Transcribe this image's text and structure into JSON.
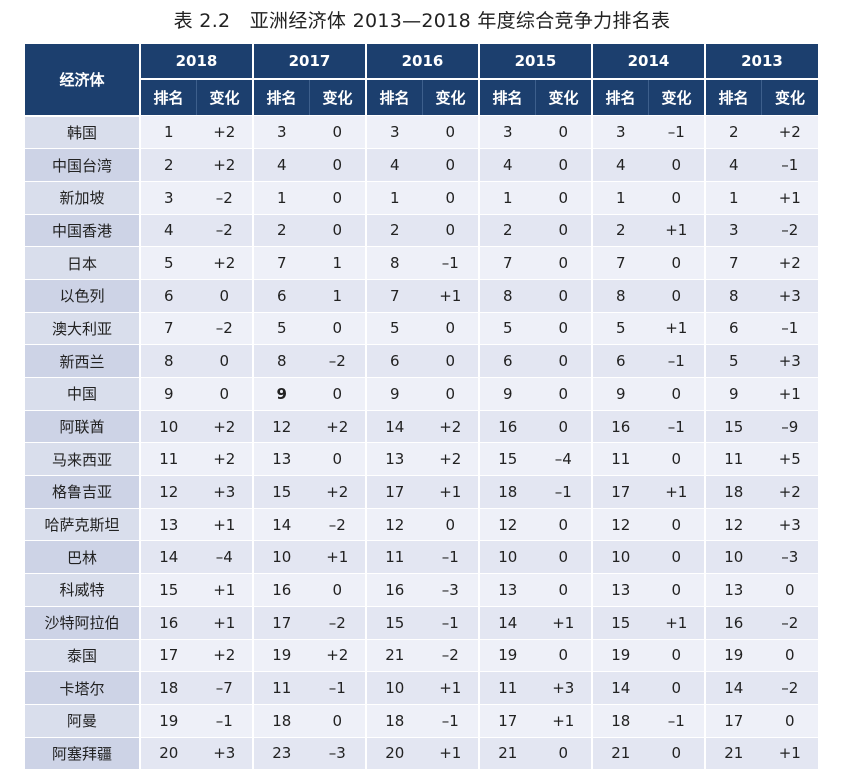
{
  "title": "表 2.2　亚洲经济体 2013—2018 年度综合竞争力排名表",
  "header": {
    "economy": "经济体",
    "rank": "排名",
    "change": "变化",
    "years": [
      "2018",
      "2017",
      "2016",
      "2015",
      "2014",
      "2013"
    ]
  },
  "rows": [
    {
      "name": "韩国",
      "cells": [
        "1",
        "+2",
        "3",
        "0",
        "3",
        "0",
        "3",
        "0",
        "3",
        "–1",
        "2",
        "+2"
      ]
    },
    {
      "name": "中国台湾",
      "cells": [
        "2",
        "+2",
        "4",
        "0",
        "4",
        "0",
        "4",
        "0",
        "4",
        "0",
        "4",
        "–1"
      ]
    },
    {
      "name": "新加坡",
      "cells": [
        "3",
        "–2",
        "1",
        "0",
        "1",
        "0",
        "1",
        "0",
        "1",
        "0",
        "1",
        "+1"
      ]
    },
    {
      "name": "中国香港",
      "cells": [
        "4",
        "–2",
        "2",
        "0",
        "2",
        "0",
        "2",
        "0",
        "2",
        "+1",
        "3",
        "–2"
      ]
    },
    {
      "name": "日本",
      "cells": [
        "5",
        "+2",
        "7",
        "1",
        "8",
        "–1",
        "7",
        "0",
        "7",
        "0",
        "7",
        "+2"
      ]
    },
    {
      "name": "以色列",
      "cells": [
        "6",
        "0",
        "6",
        "1",
        "7",
        "+1",
        "8",
        "0",
        "8",
        "0",
        "8",
        "+3"
      ]
    },
    {
      "name": "澳大利亚",
      "cells": [
        "7",
        "–2",
        "5",
        "0",
        "5",
        "0",
        "5",
        "0",
        "5",
        "+1",
        "6",
        "–1"
      ]
    },
    {
      "name": "新西兰",
      "cells": [
        "8",
        "0",
        "8",
        "–2",
        "6",
        "0",
        "6",
        "0",
        "6",
        "–1",
        "5",
        "+3"
      ]
    },
    {
      "name": "中国",
      "cells": [
        "9",
        "0",
        "9",
        "0",
        "9",
        "0",
        "9",
        "0",
        "9",
        "0",
        "9",
        "+1"
      ]
    },
    {
      "name": "阿联酋",
      "cells": [
        "10",
        "+2",
        "12",
        "+2",
        "14",
        "+2",
        "16",
        "0",
        "16",
        "–1",
        "15",
        "–9"
      ]
    },
    {
      "name": "马来西亚",
      "cells": [
        "11",
        "+2",
        "13",
        "0",
        "13",
        "+2",
        "15",
        "–4",
        "11",
        "0",
        "11",
        "+5"
      ]
    },
    {
      "name": "格鲁吉亚",
      "cells": [
        "12",
        "+3",
        "15",
        "+2",
        "17",
        "+1",
        "18",
        "–1",
        "17",
        "+1",
        "18",
        "+2"
      ]
    },
    {
      "name": "哈萨克斯坦",
      "cells": [
        "13",
        "+1",
        "14",
        "–2",
        "12",
        "0",
        "12",
        "0",
        "12",
        "0",
        "12",
        "+3"
      ]
    },
    {
      "name": "巴林",
      "cells": [
        "14",
        "–4",
        "10",
        "+1",
        "11",
        "–1",
        "10",
        "0",
        "10",
        "0",
        "10",
        "–3"
      ]
    },
    {
      "name": "科威特",
      "cells": [
        "15",
        "+1",
        "16",
        "0",
        "16",
        "–3",
        "13",
        "0",
        "13",
        "0",
        "13",
        "0"
      ]
    },
    {
      "name": "沙特阿拉伯",
      "cells": [
        "16",
        "+1",
        "17",
        "–2",
        "15",
        "–1",
        "14",
        "+1",
        "15",
        "+1",
        "16",
        "–2"
      ]
    },
    {
      "name": "泰国",
      "cells": [
        "17",
        "+2",
        "19",
        "+2",
        "21",
        "–2",
        "19",
        "0",
        "19",
        "0",
        "19",
        "0"
      ]
    },
    {
      "name": "卡塔尔",
      "cells": [
        "18",
        "–7",
        "11",
        "–1",
        "10",
        "+1",
        "11",
        "+3",
        "14",
        "0",
        "14",
        "–2"
      ]
    },
    {
      "name": "阿曼",
      "cells": [
        "19",
        "–1",
        "18",
        "0",
        "18",
        "–1",
        "17",
        "+1",
        "18",
        "–1",
        "17",
        "0"
      ]
    },
    {
      "name": "阿塞拜疆",
      "cells": [
        "20",
        "+3",
        "23",
        "–3",
        "20",
        "+1",
        "21",
        "0",
        "21",
        "0",
        "21",
        "+1"
      ]
    }
  ]
}
